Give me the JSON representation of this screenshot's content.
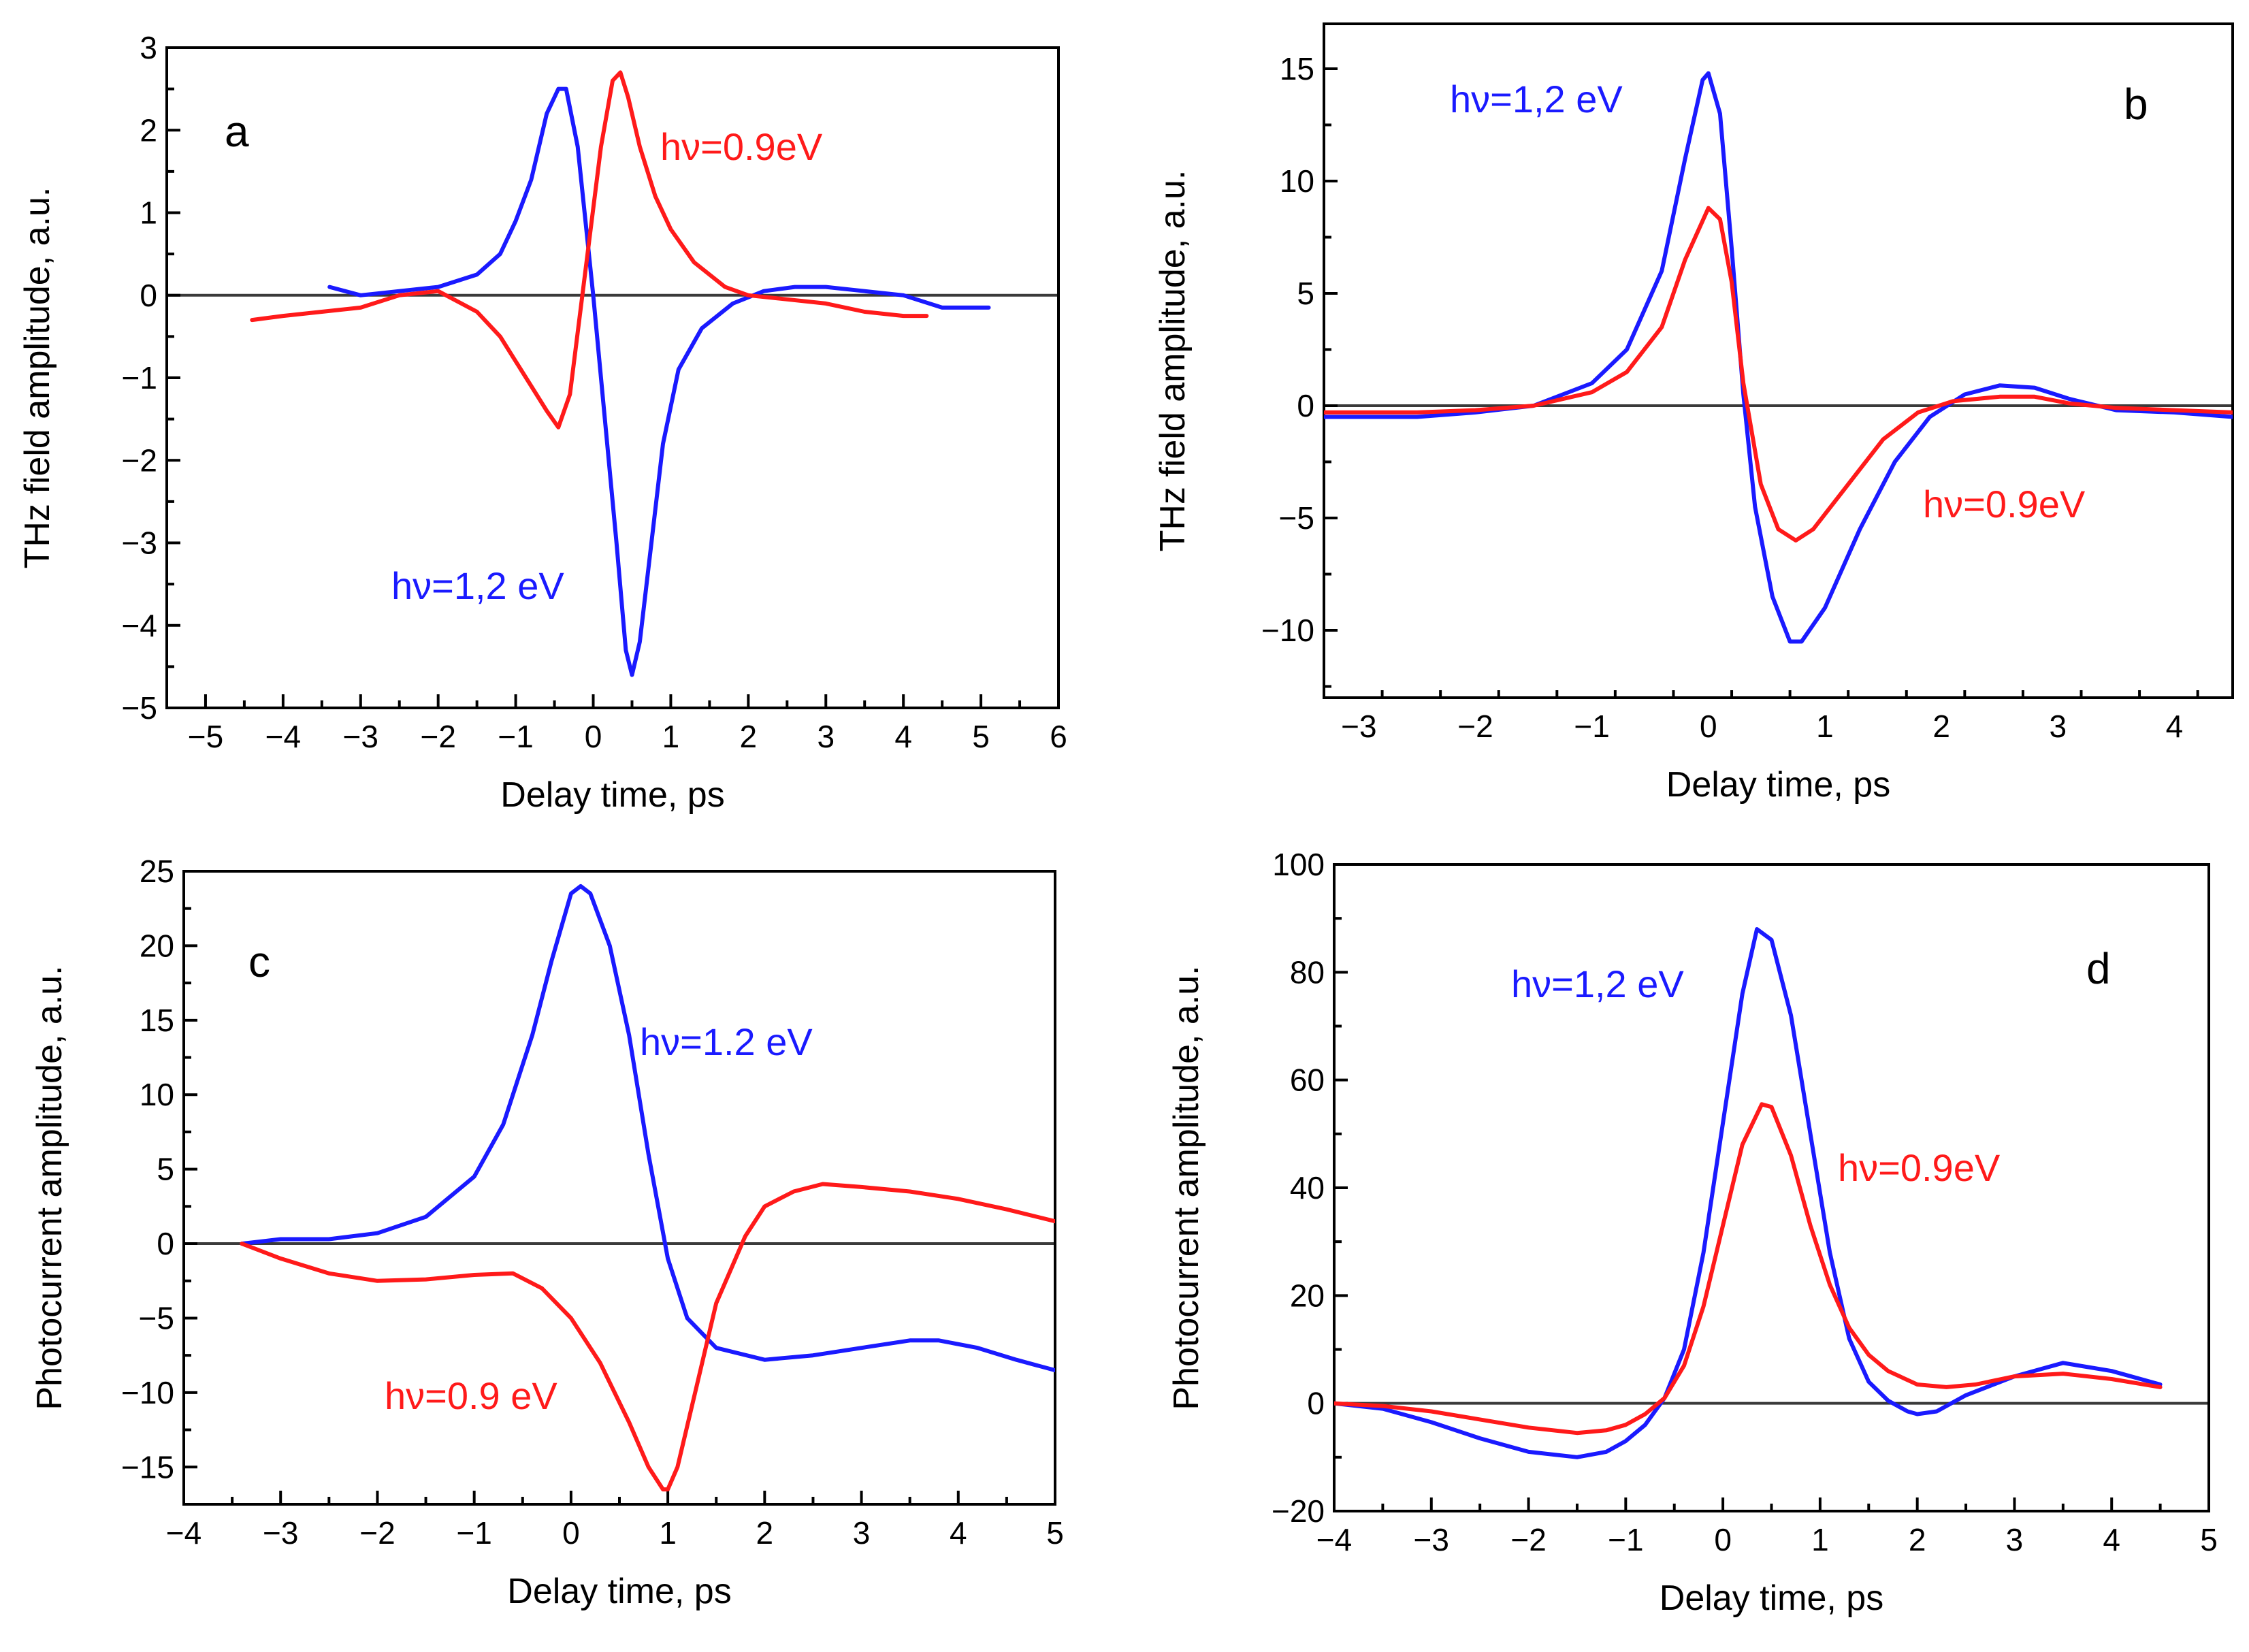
{
  "colors": {
    "blue": "#1a1aff",
    "red": "#ff1a1a"
  },
  "chart_data": [
    {
      "panel": "a",
      "type": "line",
      "xlabel": "Delay time, ps",
      "ylabel": "THz field amplitude, a.u.",
      "xlim": [
        -5.5,
        6
      ],
      "ylim": [
        -5,
        3
      ],
      "xticks": [
        -5,
        -4,
        -3,
        -2,
        -1,
        0,
        1,
        2,
        3,
        4,
        5,
        6
      ],
      "yticks": [
        -5,
        -4,
        -3,
        -2,
        -1,
        0,
        1,
        2,
        3
      ],
      "grid": false,
      "series": [
        {
          "name": "hν=1,2 eV",
          "color": "blue",
          "x": [
            -3.4,
            -3.0,
            -2.5,
            -2.0,
            -1.5,
            -1.2,
            -1.0,
            -0.8,
            -0.6,
            -0.45,
            -0.35,
            -0.2,
            0.0,
            0.15,
            0.3,
            0.42,
            0.5,
            0.6,
            0.75,
            0.9,
            1.1,
            1.4,
            1.8,
            2.2,
            2.6,
            3.0,
            3.5,
            4.0,
            4.5,
            5.1
          ],
          "y": [
            0.1,
            0.0,
            0.05,
            0.1,
            0.25,
            0.5,
            0.9,
            1.4,
            2.2,
            2.5,
            2.5,
            1.8,
            0.0,
            -1.5,
            -3.0,
            -4.3,
            -4.6,
            -4.2,
            -3.0,
            -1.8,
            -0.9,
            -0.4,
            -0.1,
            0.05,
            0.1,
            0.1,
            0.05,
            0.0,
            -0.15,
            -0.15
          ]
        },
        {
          "name": "hν=0.9eV",
          "color": "red",
          "x": [
            -4.4,
            -4.0,
            -3.5,
            -3.0,
            -2.5,
            -2.0,
            -1.5,
            -1.2,
            -1.0,
            -0.8,
            -0.6,
            -0.45,
            -0.3,
            -0.1,
            0.1,
            0.25,
            0.35,
            0.45,
            0.6,
            0.8,
            1.0,
            1.3,
            1.7,
            2.0,
            2.5,
            3.0,
            3.5,
            4.0,
            4.3
          ],
          "y": [
            -0.3,
            -0.25,
            -0.2,
            -0.15,
            0.0,
            0.05,
            -0.2,
            -0.5,
            -0.8,
            -1.1,
            -1.4,
            -1.6,
            -1.2,
            0.3,
            1.8,
            2.6,
            2.7,
            2.4,
            1.8,
            1.2,
            0.8,
            0.4,
            0.1,
            0.0,
            -0.05,
            -0.1,
            -0.2,
            -0.25,
            -0.25
          ]
        }
      ],
      "annotations": [
        {
          "text": "hν=0.9eV",
          "color": "red"
        },
        {
          "text": "hν=1,2 eV",
          "color": "blue"
        },
        {
          "text": "a",
          "color": "black"
        }
      ]
    },
    {
      "panel": "b",
      "type": "line",
      "xlabel": "Delay time, ps",
      "ylabel": "THz field amplitude, a.u.",
      "xlim": [
        -3.3,
        4.5
      ],
      "ylim": [
        -13,
        17
      ],
      "xticks": [
        -3,
        -2,
        -1,
        0,
        1,
        2,
        3,
        4
      ],
      "yticks": [
        -10,
        -5,
        0,
        5,
        10,
        15
      ],
      "grid": false,
      "series": [
        {
          "name": "hν=1,2 eV",
          "color": "blue",
          "x": [
            -3.3,
            -2.5,
            -2.0,
            -1.5,
            -1.0,
            -0.7,
            -0.4,
            -0.2,
            -0.05,
            0.0,
            0.1,
            0.2,
            0.3,
            0.4,
            0.55,
            0.7,
            0.8,
            1.0,
            1.3,
            1.6,
            1.9,
            2.2,
            2.5,
            2.8,
            3.1,
            3.5,
            4.0,
            4.5
          ],
          "y": [
            -0.5,
            -0.5,
            -0.3,
            0.0,
            1.0,
            2.5,
            6.0,
            11.0,
            14.5,
            14.8,
            13.0,
            7.0,
            0.5,
            -4.5,
            -8.5,
            -10.5,
            -10.5,
            -9.0,
            -5.5,
            -2.5,
            -0.5,
            0.5,
            0.9,
            0.8,
            0.3,
            -0.2,
            -0.3,
            -0.5
          ]
        },
        {
          "name": "hν=0.9eV",
          "color": "red",
          "x": [
            -3.3,
            -2.5,
            -2.0,
            -1.5,
            -1.0,
            -0.7,
            -0.4,
            -0.2,
            0.0,
            0.1,
            0.2,
            0.3,
            0.45,
            0.6,
            0.75,
            0.9,
            1.2,
            1.5,
            1.8,
            2.1,
            2.5,
            2.8,
            3.1,
            3.5,
            4.0,
            4.5
          ],
          "y": [
            -0.3,
            -0.3,
            -0.2,
            0.0,
            0.6,
            1.5,
            3.5,
            6.5,
            8.8,
            8.3,
            5.5,
            1.0,
            -3.5,
            -5.5,
            -6.0,
            -5.5,
            -3.5,
            -1.5,
            -0.3,
            0.2,
            0.4,
            0.4,
            0.1,
            -0.1,
            -0.2,
            -0.3
          ]
        }
      ],
      "annotations": [
        {
          "text": "hν=1,2 eV",
          "color": "blue"
        },
        {
          "text": "hν=0.9eV",
          "color": "red"
        },
        {
          "text": "b",
          "color": "black"
        }
      ]
    },
    {
      "panel": "c",
      "type": "line",
      "xlabel": "Delay time, ps",
      "ylabel": "Photocurrent amplitude, a.u.",
      "xlim": [
        -4,
        5
      ],
      "ylim": [
        -17.5,
        25
      ],
      "xticks": [
        -4,
        -3,
        -2,
        -1,
        0,
        1,
        2,
        3,
        4,
        5
      ],
      "yticks": [
        -15,
        -10,
        -5,
        0,
        5,
        10,
        15,
        20,
        25
      ],
      "grid": false,
      "series": [
        {
          "name": "hν=1.2 eV",
          "color": "blue",
          "x": [
            -3.4,
            -3.0,
            -2.5,
            -2.0,
            -1.5,
            -1.0,
            -0.7,
            -0.4,
            -0.2,
            0.0,
            0.1,
            0.2,
            0.4,
            0.6,
            0.8,
            1.0,
            1.2,
            1.5,
            2.0,
            2.5,
            3.0,
            3.5,
            3.8,
            4.2,
            4.6,
            5.0
          ],
          "y": [
            0.0,
            0.3,
            0.3,
            0.7,
            1.8,
            4.5,
            8.0,
            14.0,
            19.0,
            23.5,
            24.0,
            23.5,
            20.0,
            14.0,
            6.0,
            -1.0,
            -5.0,
            -7.0,
            -7.8,
            -7.5,
            -7.0,
            -6.5,
            -6.5,
            -7.0,
            -7.8,
            -8.5
          ]
        },
        {
          "name": "hν=0.9 eV",
          "color": "red",
          "x": [
            -3.4,
            -3.0,
            -2.5,
            -2.0,
            -1.5,
            -1.0,
            -0.6,
            -0.3,
            0.0,
            0.3,
            0.6,
            0.8,
            0.95,
            1.0,
            1.1,
            1.3,
            1.5,
            1.8,
            2.0,
            2.3,
            2.6,
            3.0,
            3.5,
            4.0,
            4.5,
            5.0
          ],
          "y": [
            0.0,
            -1.0,
            -2.0,
            -2.5,
            -2.4,
            -2.1,
            -2.0,
            -3.0,
            -5.0,
            -8.0,
            -12.0,
            -15.0,
            -16.5,
            -16.5,
            -15.0,
            -9.5,
            -4.0,
            0.5,
            2.5,
            3.5,
            4.0,
            3.8,
            3.5,
            3.0,
            2.3,
            1.5
          ]
        }
      ],
      "annotations": [
        {
          "text": "hν=1.2 eV",
          "color": "blue"
        },
        {
          "text": "hν=0.9 eV",
          "color": "red"
        },
        {
          "text": "c",
          "color": "black"
        }
      ]
    },
    {
      "panel": "d",
      "type": "line",
      "xlabel": "Delay time, ps",
      "ylabel": "Photocurrent amplitude, a.u.",
      "xlim": [
        -4,
        5
      ],
      "ylim": [
        -20,
        100
      ],
      "xticks": [
        -4,
        -3,
        -2,
        -1,
        0,
        1,
        2,
        3,
        4,
        5
      ],
      "yticks": [
        -20,
        0,
        20,
        40,
        60,
        80,
        100
      ],
      "grid": false,
      "series": [
        {
          "name": "hν=1,2 eV",
          "color": "blue",
          "x": [
            -4.0,
            -3.5,
            -3.0,
            -2.5,
            -2.0,
            -1.5,
            -1.2,
            -1.0,
            -0.8,
            -0.6,
            -0.4,
            -0.2,
            0.0,
            0.2,
            0.35,
            0.5,
            0.7,
            0.9,
            1.1,
            1.3,
            1.5,
            1.7,
            1.9,
            2.0,
            2.2,
            2.5,
            3.0,
            3.5,
            4.0,
            4.5
          ],
          "y": [
            0.0,
            -1.0,
            -3.5,
            -6.5,
            -9.0,
            -10.0,
            -9.0,
            -7.0,
            -4.0,
            1.0,
            10.0,
            28.0,
            52.0,
            76.0,
            88.0,
            86.0,
            72.0,
            50.0,
            28.0,
            12.0,
            4.0,
            0.5,
            -1.5,
            -2.0,
            -1.5,
            1.5,
            5.0,
            7.5,
            6.0,
            3.5
          ]
        },
        {
          "name": "hν=0.9eV",
          "color": "red",
          "x": [
            -4.0,
            -3.5,
            -3.0,
            -2.5,
            -2.0,
            -1.5,
            -1.2,
            -1.0,
            -0.8,
            -0.6,
            -0.4,
            -0.2,
            0.0,
            0.2,
            0.4,
            0.5,
            0.7,
            0.9,
            1.1,
            1.3,
            1.5,
            1.7,
            2.0,
            2.3,
            2.6,
            3.0,
            3.5,
            4.0,
            4.5
          ],
          "y": [
            0.0,
            -0.5,
            -1.5,
            -3.0,
            -4.5,
            -5.5,
            -5.0,
            -4.0,
            -2.0,
            1.0,
            7.0,
            18.0,
            33.0,
            48.0,
            55.5,
            55.0,
            46.0,
            33.0,
            22.0,
            14.0,
            9.0,
            6.0,
            3.5,
            3.0,
            3.5,
            5.0,
            5.5,
            4.5,
            3.0
          ]
        }
      ],
      "annotations": [
        {
          "text": "hν=1,2 eV",
          "color": "blue"
        },
        {
          "text": "hν=0.9eV",
          "color": "red"
        },
        {
          "text": "d",
          "color": "black"
        }
      ]
    }
  ]
}
